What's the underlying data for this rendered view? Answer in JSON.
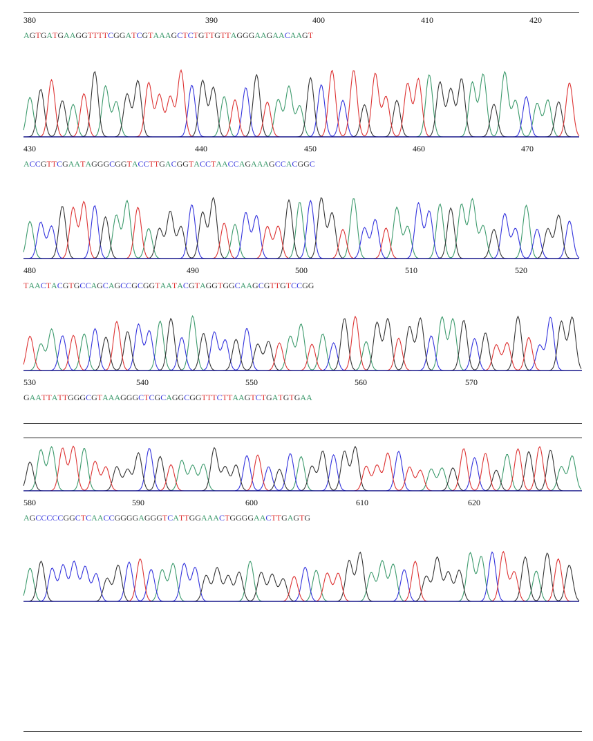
{
  "colors": {
    "A": "#3c9a6c",
    "C": "#3333dd",
    "G": "#333333",
    "T": "#dd3333",
    "baseline": "#16168a"
  },
  "chart_data": {
    "type": "line",
    "title": "",
    "xlabel": "",
    "ylabel": "",
    "grid": false,
    "rows": [
      {
        "ticks": [
          380,
          390,
          400,
          410,
          420
        ],
        "start": 380,
        "sequence": "AGTGATGAAGGTTTTCGGATCGTAAAGCTCTGTTGTTAGGGAAGAACAAGT"
      },
      {
        "ticks": [
          430,
          440,
          450,
          460,
          470
        ],
        "start": 430,
        "sequence": "ACCGTTCGAATAGGGCGGTACCTTGACGGTACCTAACCAGAAAGCCACGGC"
      },
      {
        "ticks": [
          480,
          490,
          500,
          510,
          520
        ],
        "start": 480,
        "sequence": "TAACTACGTGCCAGCAGCCGCGGTAATACGTAGGTGGCAAGCGTTGTCCGG"
      },
      {
        "ticks": [
          530,
          540,
          550,
          560,
          570
        ],
        "start": 530,
        "sequence": "GAATTATTGGGCGTAAAGGGCTCGCAGGCGGTTTCTTAAGTCTGATGTGAA"
      },
      {
        "ticks": [
          580,
          590,
          600,
          610,
          620
        ],
        "start": 580,
        "sequence": "AGCCCCCGGCTCAACCGGGGAGGGTCATTGGAAACTGGGGAACTTGAGTG"
      }
    ]
  }
}
